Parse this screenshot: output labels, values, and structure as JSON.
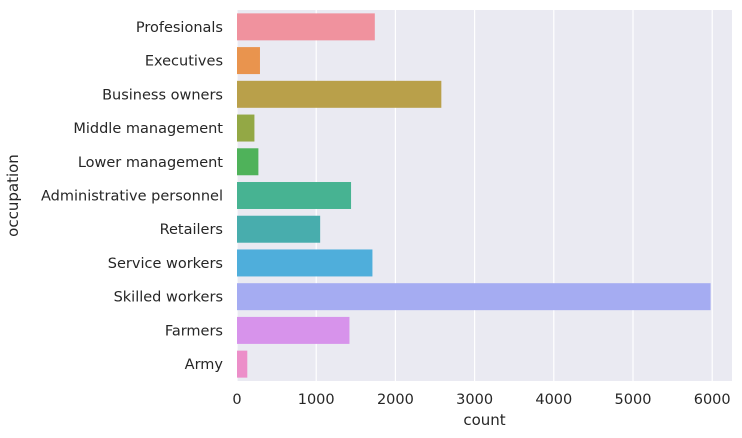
{
  "chart_data": {
    "type": "bar",
    "orientation": "horizontal",
    "title": "",
    "xlabel": "count",
    "ylabel": "occupation",
    "xlim": [
      0,
      6250
    ],
    "xticks": [
      0,
      1000,
      2000,
      3000,
      4000,
      5000,
      6000
    ],
    "grid": true,
    "background": "#EAEAF2",
    "categories": [
      "Profesionals",
      "Executives",
      "Business owners",
      "Middle management",
      "Lower management",
      "Administrative personnel",
      "Retailers",
      "Service workers",
      "Skilled workers",
      "Farmers",
      "Army"
    ],
    "values": [
      1740,
      290,
      2580,
      220,
      270,
      1440,
      1050,
      1710,
      5980,
      1420,
      130
    ],
    "colors": [
      "#F0929E",
      "#E9944E",
      "#B9A04A",
      "#93A845",
      "#4FB25A",
      "#47B392",
      "#48ADAD",
      "#4FAEDB",
      "#A5ACF2",
      "#D793EB",
      "#EC8FC9"
    ]
  }
}
